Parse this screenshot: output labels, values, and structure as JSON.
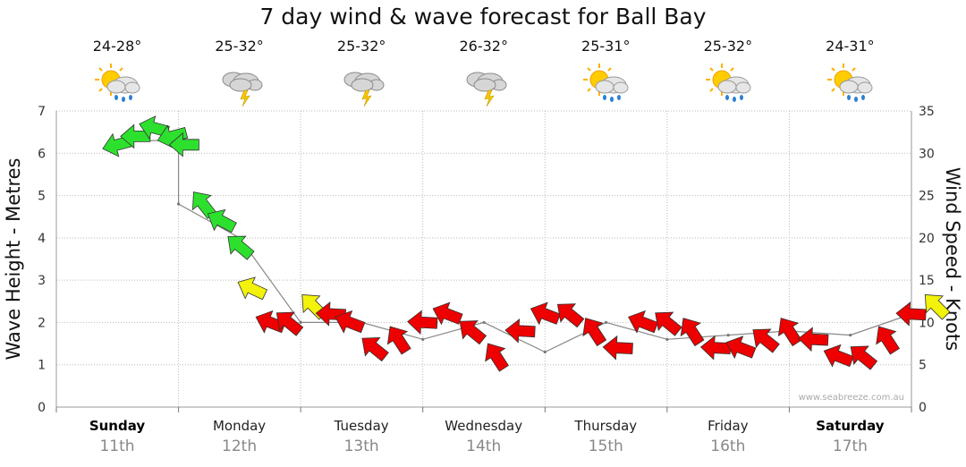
{
  "title": "7 day wind & wave forecast for Ball Bay",
  "watermark": "www.seabreeze.com.au",
  "days": [
    {
      "temp": "24-28°",
      "icon": "sun-cloud-rain-icon",
      "name": "Sunday",
      "date": "11th",
      "bold": true
    },
    {
      "temp": "25-32°",
      "icon": "cloud-storm-icon",
      "name": "Monday",
      "date": "12th",
      "bold": false
    },
    {
      "temp": "25-32°",
      "icon": "cloud-storm-icon",
      "name": "Tuesday",
      "date": "13th",
      "bold": false
    },
    {
      "temp": "26-32°",
      "icon": "cloud-storm-icon",
      "name": "Wednesday",
      "date": "14th",
      "bold": false
    },
    {
      "temp": "25-31°",
      "icon": "sun-cloud-rain-icon",
      "name": "Thursday",
      "date": "15th",
      "bold": false
    },
    {
      "temp": "25-32°",
      "icon": "sun-cloud-rain-icon",
      "name": "Friday",
      "date": "16th",
      "bold": false
    },
    {
      "temp": "24-31°",
      "icon": "sun-cloud-rain-icon",
      "name": "Saturday",
      "date": "17th",
      "bold": true
    }
  ],
  "colors": {
    "strong": "#2ee02e",
    "moderate": "#f2f20a",
    "light": "#ee0000",
    "wave_line": "#888888",
    "grid": "#bbbbbb"
  },
  "chart_data": {
    "type": "line",
    "title": "7 day wind & wave forecast for Ball Bay",
    "ylabel": "Wave Height - Metres",
    "y2label": "Wind Speed - Knots",
    "ylim": [
      0,
      7
    ],
    "y2lim": [
      0,
      35
    ],
    "yticks": [
      0,
      1,
      2,
      3,
      4,
      5,
      6,
      7
    ],
    "y2ticks": [
      0,
      5,
      10,
      15,
      20,
      25,
      30,
      35
    ],
    "categories": [
      "Sunday",
      "Monday",
      "Tuesday",
      "Wednesday",
      "Thursday",
      "Friday",
      "Saturday"
    ],
    "grid": true,
    "series": [
      {
        "name": "Wave Height",
        "x": [
          0.0,
          0.5,
          0.5,
          1.0,
          1.5,
          2.0,
          2.5,
          3.0,
          3.5,
          4.0,
          4.5,
          5.0,
          5.5,
          6.0,
          6.5
        ],
        "values": [
          6.3,
          6.3,
          4.8,
          4.0,
          2.0,
          2.0,
          1.6,
          2.0,
          1.3,
          2.0,
          1.6,
          1.7,
          1.8,
          1.7,
          2.2
        ]
      },
      {
        "name": "Wind Speed",
        "x": [
          0.0,
          0.15,
          0.3,
          0.45,
          0.55,
          0.7,
          0.85,
          1.0,
          1.1,
          1.25,
          1.4,
          1.6,
          1.75,
          1.9,
          2.1,
          2.3,
          2.5,
          2.7,
          2.9,
          3.1,
          3.3,
          3.5,
          3.7,
          3.9,
          4.1,
          4.3,
          4.5,
          4.7,
          4.9,
          5.1,
          5.3,
          5.5,
          5.7,
          5.9,
          6.1,
          6.3,
          6.5,
          6.7
        ],
        "values": [
          31,
          32,
          33,
          32,
          31,
          24,
          22,
          19,
          14,
          10,
          10,
          12,
          11,
          10,
          7,
          8,
          10,
          11,
          9,
          6,
          9,
          11,
          11,
          9,
          7,
          10,
          10,
          9,
          7,
          7,
          8,
          9,
          8,
          6,
          6,
          8,
          11,
          12
        ]
      }
    ]
  }
}
